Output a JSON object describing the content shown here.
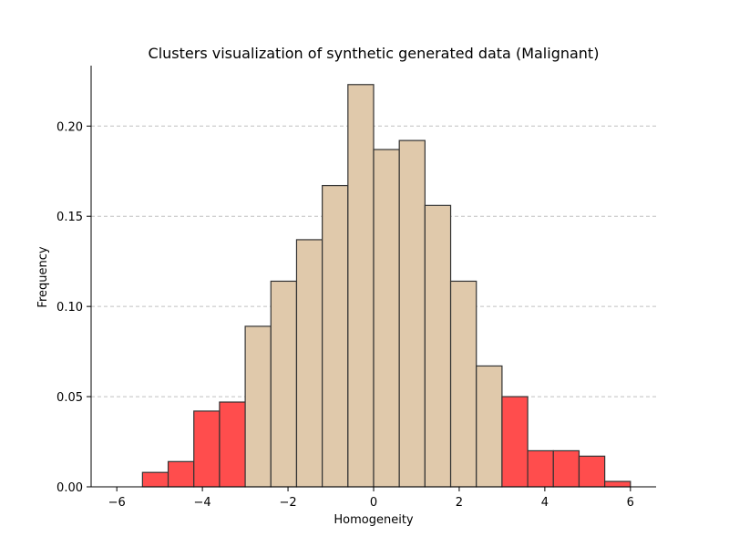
{
  "chart_data": {
    "type": "bar",
    "title": "Clusters visualization of synthetic generated data (Malignant)",
    "xlabel": "Homogeneity",
    "ylabel": "Frequency",
    "xlim": [
      -6.6,
      6.6
    ],
    "ylim": [
      0,
      0.2335
    ],
    "xticks": [
      -6,
      -4,
      -2,
      0,
      2,
      4,
      6
    ],
    "yticks": [
      0.0,
      0.05,
      0.1,
      0.15,
      0.2
    ],
    "grid": "y-dashed",
    "bin_edges": [
      -5.4,
      -4.8,
      -4.2,
      -3.6,
      -3.0,
      -2.4,
      -1.8,
      -1.2,
      -0.6,
      0.0,
      0.6,
      1.2,
      1.8,
      2.4,
      3.0,
      3.6,
      4.2,
      4.8,
      5.4,
      6.0
    ],
    "values": [
      0.008,
      0.014,
      0.042,
      0.047,
      0.089,
      0.114,
      0.137,
      0.167,
      0.223,
      0.187,
      0.192,
      0.156,
      0.114,
      0.067,
      0.05,
      0.02,
      0.02,
      0.017,
      0.003
    ],
    "colors": {
      "outlier": "#ff4d4d",
      "core": "#e0c9ab",
      "edge": "#333333",
      "grid": "#c0c0c0"
    },
    "outlier_threshold": 3.0
  }
}
